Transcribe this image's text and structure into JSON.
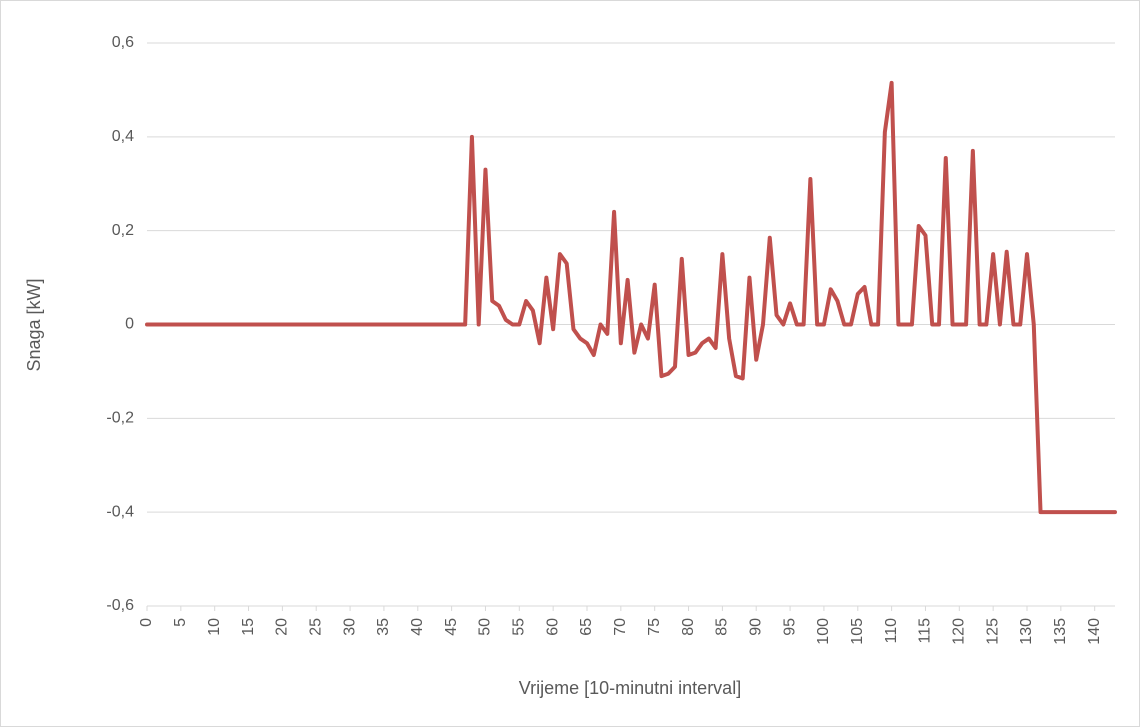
{
  "chart_data": {
    "type": "line",
    "x_label": "Vrijeme [10-minutni interval]",
    "y_label": "Snaga [kW]",
    "x": [
      0,
      1,
      2,
      3,
      4,
      5,
      6,
      7,
      8,
      9,
      10,
      11,
      12,
      13,
      14,
      15,
      16,
      17,
      18,
      19,
      20,
      21,
      22,
      23,
      24,
      25,
      26,
      27,
      28,
      29,
      30,
      31,
      32,
      33,
      34,
      35,
      36,
      37,
      38,
      39,
      40,
      41,
      42,
      43,
      44,
      45,
      46,
      47,
      48,
      49,
      50,
      51,
      52,
      53,
      54,
      55,
      56,
      57,
      58,
      59,
      60,
      61,
      62,
      63,
      64,
      65,
      66,
      67,
      68,
      69,
      70,
      71,
      72,
      73,
      74,
      75,
      76,
      77,
      78,
      79,
      80,
      81,
      82,
      83,
      84,
      85,
      86,
      87,
      88,
      89,
      90,
      91,
      92,
      93,
      94,
      95,
      96,
      97,
      98,
      99,
      100,
      101,
      102,
      103,
      104,
      105,
      106,
      107,
      108,
      109,
      110,
      111,
      112,
      113,
      114,
      115,
      116,
      117,
      118,
      119,
      120,
      121,
      122,
      123,
      124,
      125,
      126,
      127,
      128,
      129,
      130,
      131,
      132,
      133,
      134,
      135,
      136,
      137,
      138,
      139,
      140,
      141,
      142,
      143
    ],
    "values": [
      0,
      0,
      0,
      0,
      0,
      0,
      0,
      0,
      0,
      0,
      0,
      0,
      0,
      0,
      0,
      0,
      0,
      0,
      0,
      0,
      0,
      0,
      0,
      0,
      0,
      0,
      0,
      0,
      0,
      0,
      0,
      0,
      0,
      0,
      0,
      0,
      0,
      0,
      0,
      0,
      0,
      0,
      0,
      0,
      0,
      0,
      0,
      0,
      0.4,
      0,
      0.33,
      0.05,
      0.04,
      0.01,
      0,
      0,
      0.05,
      0.03,
      -0.04,
      0.1,
      -0.01,
      0.15,
      0.13,
      -0.01,
      -0.03,
      -0.04,
      -0.065,
      0,
      -0.02,
      0.24,
      -0.04,
      0.095,
      -0.06,
      0,
      -0.03,
      0.085,
      -0.11,
      -0.105,
      -0.09,
      0.14,
      -0.065,
      -0.06,
      -0.04,
      -0.03,
      -0.05,
      0.15,
      -0.03,
      -0.11,
      -0.115,
      0.1,
      -0.075,
      0,
      0.185,
      0.02,
      0,
      0.045,
      0,
      0,
      0.31,
      0,
      0,
      0.075,
      0.05,
      0,
      0,
      0.065,
      0.08,
      0,
      0,
      0.41,
      0.515,
      0,
      0,
      0,
      0.21,
      0.19,
      0,
      0,
      0.355,
      0,
      0,
      0,
      0.37,
      0,
      0,
      0.15,
      0,
      0.155,
      0,
      0,
      0.15,
      0,
      -0.4,
      -0.4,
      -0.4,
      -0.4,
      -0.4,
      -0.4,
      -0.4,
      -0.4,
      -0.4,
      -0.4,
      -0.4,
      -0.4
    ],
    "color": "#c0504d",
    "xlim": [
      0,
      143
    ],
    "xticks": [
      0,
      5,
      10,
      15,
      20,
      25,
      30,
      35,
      40,
      45,
      50,
      55,
      60,
      65,
      70,
      75,
      80,
      85,
      90,
      95,
      100,
      105,
      110,
      115,
      120,
      125,
      130,
      135,
      140
    ],
    "ylim": [
      -0.6,
      0.6
    ],
    "yticks": [
      {
        "value": -0.6,
        "label": "-0,6"
      },
      {
        "value": -0.4,
        "label": "-0,4"
      },
      {
        "value": -0.2,
        "label": "-0,2"
      },
      0,
      {
        "value": 0.2,
        "label": "0,2"
      },
      {
        "value": 0.4,
        "label": "0,4"
      },
      {
        "value": 0.6,
        "label": "0,6"
      }
    ],
    "grid": true
  }
}
